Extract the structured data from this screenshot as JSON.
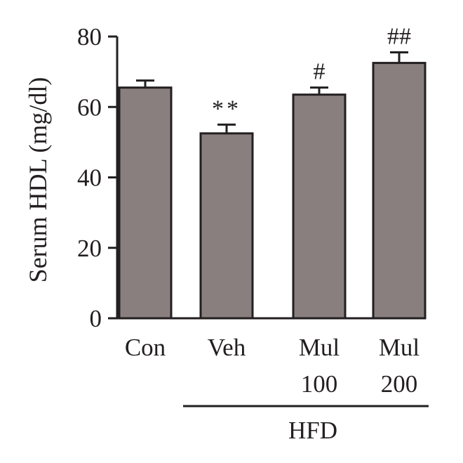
{
  "chart_data": {
    "type": "bar",
    "title": "",
    "xlabel": "",
    "ylabel": "Serum HDL (mg/dl)",
    "ylim": [
      0,
      80
    ],
    "yticks": [
      0,
      20,
      40,
      60,
      80
    ],
    "categories": [
      {
        "line1": "Con",
        "line2": ""
      },
      {
        "line1": "Veh",
        "line2": ""
      },
      {
        "line1": "Mul",
        "line2": "100"
      },
      {
        "line1": "Mul",
        "line2": "200"
      }
    ],
    "values": [
      65.5,
      52.5,
      63.5,
      72.5
    ],
    "errors": [
      2.0,
      2.5,
      2.0,
      3.0
    ],
    "annotations": [
      "",
      "**",
      "#",
      "##"
    ],
    "group": {
      "label": "HFD",
      "from": 1,
      "to": 3
    },
    "bar_color": "#8a7f7f",
    "grid": false,
    "legend": "none"
  }
}
